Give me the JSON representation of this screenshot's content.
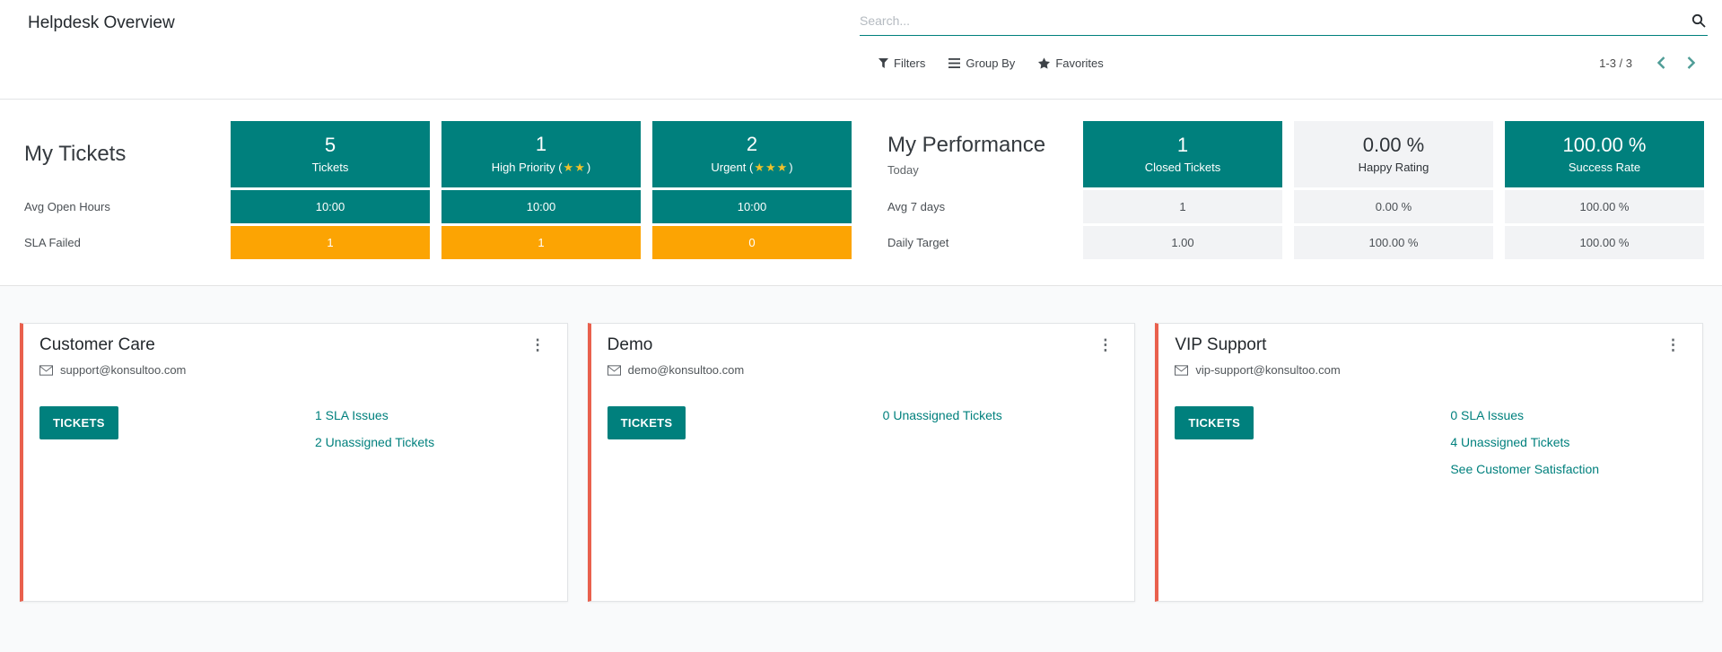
{
  "header": {
    "title": "Helpdesk Overview",
    "search_placeholder": "Search...",
    "controls": {
      "filters": "Filters",
      "group_by": "Group By",
      "favorites": "Favorites"
    },
    "pager": "1-3 / 3"
  },
  "my_tickets": {
    "title": "My Tickets",
    "row_labels": [
      "Avg Open Hours",
      "SLA Failed"
    ],
    "columns": [
      {
        "count": "5",
        "label": "Tickets",
        "stars": 0,
        "avg_open_hours": "10:00",
        "sla_failed": "1"
      },
      {
        "count": "1",
        "label": "High Priority",
        "stars": 2,
        "avg_open_hours": "10:00",
        "sla_failed": "1"
      },
      {
        "count": "2",
        "label": "Urgent",
        "stars": 3,
        "avg_open_hours": "10:00",
        "sla_failed": "0"
      }
    ]
  },
  "my_performance": {
    "title": "My Performance",
    "subtitle": "Today",
    "row_labels": [
      "Avg 7 days",
      "Daily Target"
    ],
    "columns": [
      {
        "value": "1",
        "label": "Closed Tickets",
        "highlight": true,
        "avg_7_days": "1",
        "daily_target": "1.00"
      },
      {
        "value": "0.00 %",
        "label": "Happy Rating",
        "highlight": false,
        "avg_7_days": "0.00 %",
        "daily_target": "100.00 %"
      },
      {
        "value": "100.00 %",
        "label": "Success Rate",
        "highlight": true,
        "avg_7_days": "100.00 %",
        "daily_target": "100.00 %"
      }
    ]
  },
  "teams": [
    {
      "name": "Customer Care",
      "email": "support@konsultoo.com",
      "button_label": "TICKETS",
      "links": [
        "1 SLA Issues",
        "2 Unassigned Tickets"
      ]
    },
    {
      "name": "Demo",
      "email": "demo@konsultoo.com",
      "button_label": "TICKETS",
      "links": [
        "0 Unassigned Tickets"
      ]
    },
    {
      "name": "VIP Support",
      "email": "vip-support@konsultoo.com",
      "button_label": "TICKETS",
      "links": [
        "0 SLA Issues",
        "4 Unassigned Tickets",
        "See Customer Satisfaction"
      ]
    }
  ],
  "colors": {
    "teal": "#00807D",
    "orange": "#FCA403",
    "star_gold": "#EFC12C",
    "team_accent": "#E9604D"
  }
}
